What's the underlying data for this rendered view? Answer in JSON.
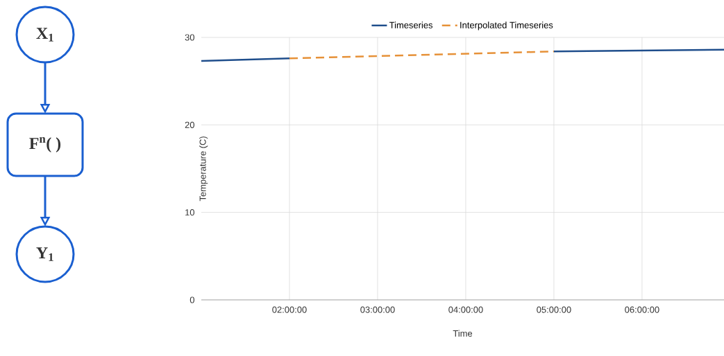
{
  "chart_data": [
    {
      "type": "other",
      "color": "#1a5fd0",
      "annotations": [
        "X$_{1}$",
        "F$^{n}$( )",
        "Y$_{1}$"
      ]
    },
    {
      "type": "line",
      "xlabel": "Time",
      "ylabel": "Temperature (C)",
      "xlim": [
        1,
        6.93
      ],
      "ylim": [
        0,
        30
      ],
      "xticks": [
        {
          "value": 2,
          "label": "02:00:00"
        },
        {
          "value": 3,
          "label": "03:00:00"
        },
        {
          "value": 4,
          "label": "04:00:00"
        },
        {
          "value": 5,
          "label": "05:00:00"
        },
        {
          "value": 6,
          "label": "06:00:00"
        }
      ],
      "yticks": [
        0,
        10,
        20,
        30
      ],
      "grid": true,
      "legend": "top",
      "series": [
        {
          "name": "Timeseries",
          "color": "#1f4e8c",
          "line_style": "solid",
          "x": [
            1,
            2,
            3,
            5,
            6.93
          ],
          "values": [
            27.3,
            27.6,
            null,
            28.4,
            28.6
          ]
        },
        {
          "name": "Interpolated Timeseries",
          "color": "#e69138",
          "line_style": "dashed",
          "x": [
            2,
            5
          ],
          "values": [
            27.6,
            28.4
          ]
        }
      ]
    }
  ]
}
